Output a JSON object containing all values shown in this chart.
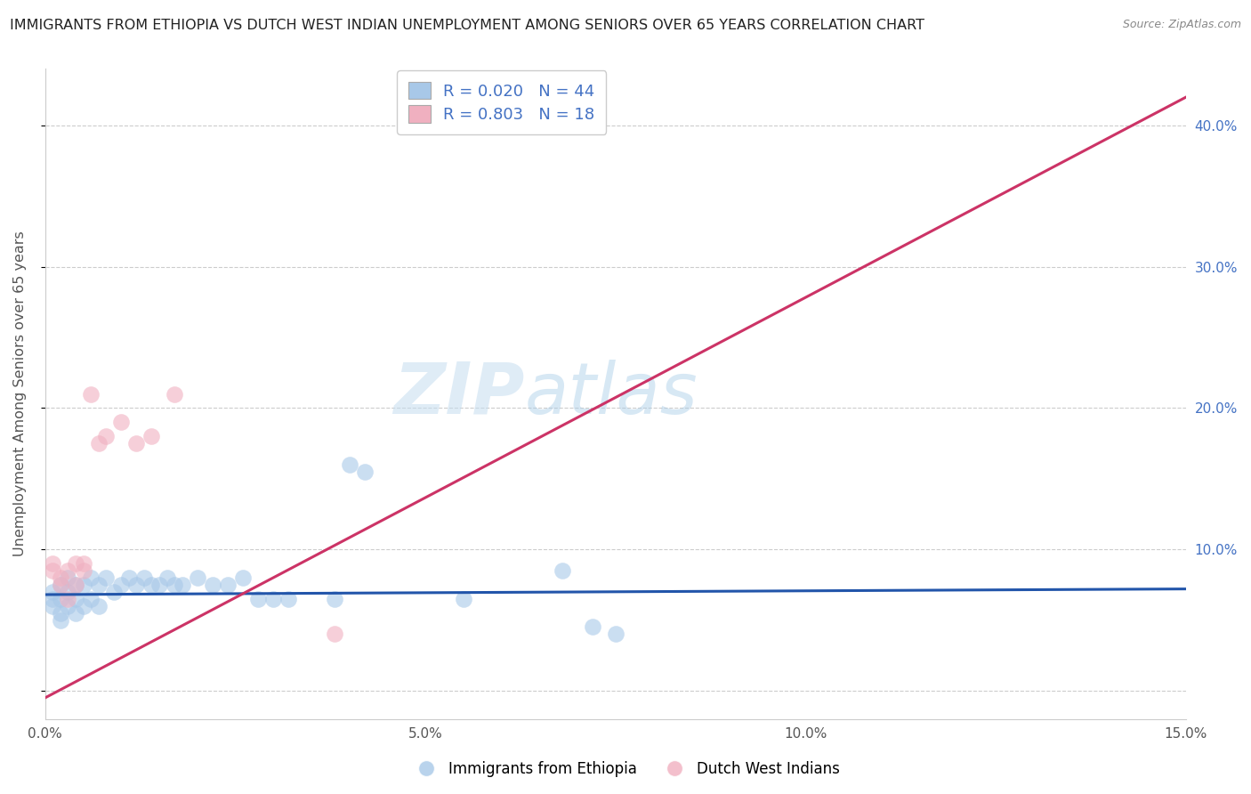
{
  "title": "IMMIGRANTS FROM ETHIOPIA VS DUTCH WEST INDIAN UNEMPLOYMENT AMONG SENIORS OVER 65 YEARS CORRELATION CHART",
  "source": "Source: ZipAtlas.com",
  "ylabel": "Unemployment Among Seniors over 65 years",
  "xlim": [
    0.0,
    0.15
  ],
  "ylim": [
    -0.02,
    0.44
  ],
  "yticks": [
    0.0,
    0.1,
    0.2,
    0.3,
    0.4
  ],
  "ytick_labels_left": [
    "",
    "",
    "",
    "",
    ""
  ],
  "ytick_labels_right": [
    "",
    "10.0%",
    "20.0%",
    "30.0%",
    "40.0%"
  ],
  "xticks": [
    0.0,
    0.05,
    0.1,
    0.15
  ],
  "xtick_labels": [
    "0.0%",
    "5.0%",
    "10.0%",
    "15.0%"
  ],
  "watermark_zip": "ZIP",
  "watermark_atlas": "atlas",
  "legend_label_blue": "Immigrants from Ethiopia",
  "legend_label_pink": "Dutch West Indians",
  "blue_color": "#a8c8e8",
  "pink_color": "#f0b0c0",
  "blue_line_color": "#2255aa",
  "pink_line_color": "#cc3366",
  "blue_scatter_x": [
    0.001,
    0.001,
    0.001,
    0.002,
    0.002,
    0.002,
    0.002,
    0.003,
    0.003,
    0.003,
    0.004,
    0.004,
    0.004,
    0.005,
    0.005,
    0.006,
    0.006,
    0.007,
    0.007,
    0.008,
    0.009,
    0.01,
    0.011,
    0.012,
    0.013,
    0.014,
    0.015,
    0.016,
    0.017,
    0.018,
    0.02,
    0.022,
    0.024,
    0.026,
    0.028,
    0.03,
    0.032,
    0.038,
    0.04,
    0.042,
    0.055,
    0.068,
    0.072,
    0.075
  ],
  "blue_scatter_y": [
    0.07,
    0.065,
    0.06,
    0.075,
    0.065,
    0.055,
    0.05,
    0.08,
    0.07,
    0.06,
    0.075,
    0.065,
    0.055,
    0.075,
    0.06,
    0.08,
    0.065,
    0.075,
    0.06,
    0.08,
    0.07,
    0.075,
    0.08,
    0.075,
    0.08,
    0.075,
    0.075,
    0.08,
    0.075,
    0.075,
    0.08,
    0.075,
    0.075,
    0.08,
    0.065,
    0.065,
    0.065,
    0.065,
    0.16,
    0.155,
    0.065,
    0.085,
    0.045,
    0.04
  ],
  "pink_scatter_x": [
    0.001,
    0.001,
    0.002,
    0.002,
    0.003,
    0.003,
    0.004,
    0.004,
    0.005,
    0.005,
    0.006,
    0.007,
    0.008,
    0.01,
    0.012,
    0.014,
    0.017,
    0.038
  ],
  "pink_scatter_y": [
    0.09,
    0.085,
    0.08,
    0.075,
    0.085,
    0.065,
    0.09,
    0.075,
    0.09,
    0.085,
    0.21,
    0.175,
    0.18,
    0.19,
    0.175,
    0.18,
    0.21,
    0.04
  ],
  "blue_line_x0": 0.0,
  "blue_line_x1": 0.15,
  "blue_line_y0": 0.068,
  "blue_line_y1": 0.072,
  "pink_line_x0": 0.0,
  "pink_line_x1": 0.15,
  "pink_line_y0": -0.005,
  "pink_line_y1": 0.42,
  "background_color": "#ffffff",
  "grid_color": "#cccccc",
  "title_color": "#222222",
  "axis_label_color": "#555555",
  "right_axis_color": "#4472c4"
}
